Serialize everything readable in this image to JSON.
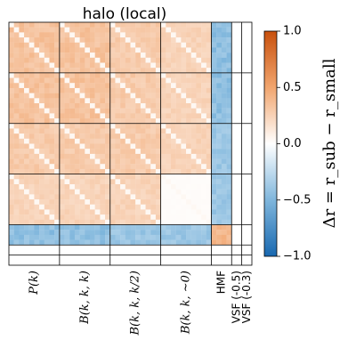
{
  "chart_data": {
    "type": "heatmap",
    "title": "halo (local)",
    "blocks": [
      {
        "label": "P(k)",
        "size": 10
      },
      {
        "label": "B(k, k, k)",
        "size": 10
      },
      {
        "label": "B(k, k, k/2)",
        "size": 10
      },
      {
        "label": "B(k, k, ~0)",
        "size": 10
      },
      {
        "label": "HMF",
        "size": 4
      },
      {
        "label": "VSF (-0.5)",
        "size": 2
      },
      {
        "label": "VSF (-0.3)",
        "size": 2
      }
    ],
    "block_values": [
      [
        0.35,
        0.35,
        0.3,
        0.25,
        -0.45,
        0.0,
        0.0
      ],
      [
        0.35,
        0.35,
        0.3,
        0.25,
        -0.45,
        0.0,
        0.0
      ],
      [
        0.3,
        0.3,
        0.3,
        0.25,
        -0.4,
        0.0,
        0.0
      ],
      [
        0.25,
        0.25,
        0.25,
        0.02,
        -0.4,
        0.0,
        0.0
      ],
      [
        -0.45,
        -0.45,
        -0.4,
        -0.4,
        0.4,
        0.0,
        0.0
      ],
      [
        0.0,
        0.0,
        0.0,
        0.0,
        0.0,
        0.0,
        0.0
      ],
      [
        0.0,
        0.0,
        0.0,
        0.0,
        0.0,
        0.0,
        0.0
      ]
    ],
    "colorbar": {
      "label": "Δr = r_sub − r_small",
      "min": -1.0,
      "max": 1.0,
      "ticks": [
        "1.0",
        "0.5",
        "0.0",
        "−0.5",
        "−1.0"
      ],
      "cmap": "blue-white-orange",
      "low_color": "#1f77b4",
      "high_color": "#d95f0e"
    }
  }
}
